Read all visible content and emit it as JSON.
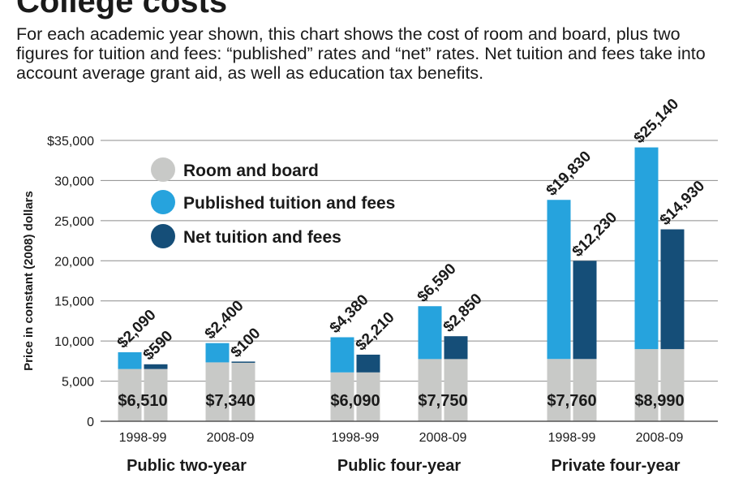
{
  "title": "College costs",
  "subtitle": "For each academic year shown, this chart shows the cost of room and board, plus two figures for tuition and fees: “published” rates and “net” rates. Net tuition and fees take into account average grant aid, as well as education tax benefits.",
  "colors": {
    "room_and_board": "#c8c9c7",
    "published": "#26a3dd",
    "net": "#154e78",
    "grid": "#8c8c8c",
    "text": "#1a1a1a"
  },
  "chart_data": {
    "type": "bar",
    "stacked": true,
    "ylabel": "Price in constant (2008) dollars",
    "ylim": [
      0,
      35000
    ],
    "yticks": [
      0,
      5000,
      10000,
      15000,
      20000,
      25000,
      30000,
      35000
    ],
    "ytick_labels": [
      "0",
      "5,000",
      "10,000",
      "15,000",
      "20,000",
      "25,000",
      "30,000",
      "$35,000"
    ],
    "grid": true,
    "legend_position": "top-left",
    "legend": [
      "Room and board",
      "Published tuition and fees",
      "Net tuition and fees"
    ],
    "groups": [
      {
        "name": "Public two-year",
        "years": [
          {
            "label": "1998-99",
            "room_and_board": 6510,
            "room_label": "$6,510",
            "published": 2090,
            "published_label": "$2,090",
            "net": 590,
            "net_label": "$590"
          },
          {
            "label": "2008-09",
            "room_and_board": 7340,
            "room_label": "$7,340",
            "published": 2400,
            "published_label": "$2,400",
            "net": 100,
            "net_label": "$100"
          }
        ]
      },
      {
        "name": "Public four-year",
        "years": [
          {
            "label": "1998-99",
            "room_and_board": 6090,
            "room_label": "$6,090",
            "published": 4380,
            "published_label": "$4,380",
            "net": 2210,
            "net_label": "$2,210"
          },
          {
            "label": "2008-09",
            "room_and_board": 7750,
            "room_label": "$7,750",
            "published": 6590,
            "published_label": "$6,590",
            "net": 2850,
            "net_label": "$2,850"
          }
        ]
      },
      {
        "name": "Private four-year",
        "years": [
          {
            "label": "1998-99",
            "room_and_board": 7760,
            "room_label": "$7,760",
            "published": 19830,
            "published_label": "$19,830",
            "net": 12230,
            "net_label": "$12,230"
          },
          {
            "label": "2008-09",
            "room_and_board": 8990,
            "room_label": "$8,990",
            "published": 25140,
            "published_label": "$25,140",
            "net": 14930,
            "net_label": "$14,930"
          }
        ]
      }
    ]
  }
}
